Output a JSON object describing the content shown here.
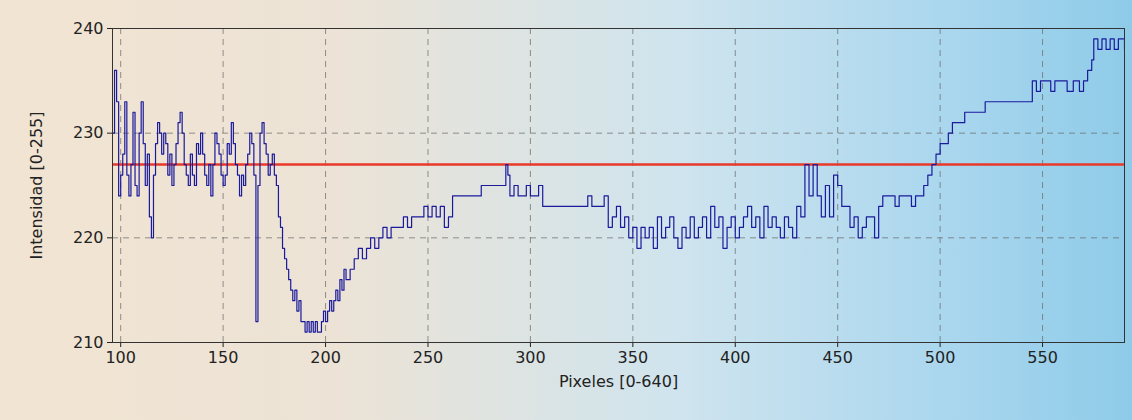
{
  "chart_data": {
    "type": "line",
    "x_label": "Pixeles [0-640]",
    "y_label": "Intensidad [0-255]",
    "xlim": [
      96,
      590
    ],
    "xticks": [
      100,
      150,
      200,
      250,
      300,
      350,
      400,
      450,
      500,
      550
    ],
    "ylim": [
      210,
      240
    ],
    "yticks": [
      210,
      220,
      230,
      240
    ],
    "grid": true,
    "line_style": "steps",
    "x": [
      96,
      97,
      98,
      99,
      100,
      101,
      102,
      103,
      104,
      105,
      106,
      107,
      108,
      109,
      110,
      111,
      112,
      113,
      114,
      115,
      116,
      117,
      118,
      119,
      120,
      121,
      122,
      123,
      124,
      125,
      126,
      127,
      128,
      129,
      130,
      131,
      132,
      133,
      134,
      135,
      136,
      137,
      138,
      139,
      140,
      141,
      142,
      143,
      144,
      145,
      146,
      147,
      148,
      149,
      150,
      151,
      152,
      153,
      154,
      155,
      156,
      157,
      158,
      159,
      160,
      161,
      162,
      163,
      164,
      165,
      166,
      167,
      168,
      169,
      170,
      171,
      172,
      173,
      174,
      175,
      176,
      177,
      178,
      179,
      180,
      181,
      182,
      183,
      184,
      185,
      186,
      187,
      188,
      189,
      190,
      191,
      192,
      193,
      194,
      195,
      196,
      197,
      198,
      199,
      200,
      201,
      202,
      203,
      204,
      205,
      206,
      207,
      208,
      209,
      210,
      212,
      214,
      216,
      218,
      220,
      222,
      224,
      226,
      228,
      230,
      232,
      235,
      238,
      240,
      242,
      245,
      248,
      250,
      252,
      254,
      256,
      258,
      260,
      262,
      276,
      288,
      289,
      290,
      292,
      294,
      296,
      298,
      300,
      302,
      304,
      306,
      328,
      330,
      336,
      338,
      340,
      342,
      344,
      346,
      348,
      350,
      352,
      354,
      356,
      358,
      360,
      362,
      364,
      366,
      368,
      370,
      372,
      374,
      376,
      378,
      380,
      382,
      384,
      386,
      388,
      390,
      392,
      394,
      396,
      398,
      400,
      402,
      404,
      406,
      408,
      410,
      412,
      414,
      416,
      418,
      420,
      422,
      424,
      426,
      428,
      430,
      432,
      434,
      436,
      438,
      440,
      442,
      444,
      446,
      448,
      450,
      452,
      456,
      458,
      460,
      462,
      464,
      468,
      470,
      472,
      478,
      480,
      486,
      488,
      492,
      494,
      496,
      498,
      500,
      504,
      506,
      512,
      522,
      545,
      547,
      549,
      554,
      556,
      562,
      565,
      568,
      570,
      572,
      574,
      575,
      577,
      579,
      581,
      583,
      585,
      587,
      590
    ],
    "series": [
      {
        "color": "#1a1a9c",
        "values": [
          230,
          236,
          233,
          224,
          226,
          228,
          233,
          226,
          224,
          227,
          232,
          225,
          224,
          230,
          233,
          229,
          225,
          228,
          222,
          220,
          226,
          229,
          231,
          230,
          228,
          230,
          229,
          226,
          228,
          225,
          227,
          229,
          231,
          232,
          230,
          227,
          226,
          225,
          228,
          226,
          225,
          229,
          228,
          230,
          228,
          226,
          225,
          227,
          224,
          227,
          230,
          229,
          228,
          226,
          225,
          226,
          229,
          228,
          231,
          229,
          227,
          226,
          224,
          226,
          225,
          227,
          228,
          230,
          229,
          226,
          212,
          225,
          230,
          231,
          229,
          228,
          226,
          227,
          228,
          226,
          225,
          222,
          221,
          219,
          218,
          217,
          216,
          215,
          214,
          215,
          213,
          214,
          212,
          212,
          211,
          212,
          211,
          212,
          211,
          212,
          211,
          211,
          212,
          213,
          212,
          213,
          214,
          213,
          214,
          215,
          214,
          216,
          215,
          217,
          216,
          217,
          218,
          219,
          218,
          219,
          220,
          219,
          220,
          221,
          220,
          221,
          221,
          222,
          221,
          222,
          222,
          223,
          222,
          223,
          222,
          223,
          221,
          222,
          224,
          225,
          227,
          226,
          224,
          225,
          224,
          224,
          225,
          224,
          224,
          225,
          223,
          224,
          223,
          224,
          221,
          222,
          223,
          221,
          222,
          220,
          221,
          219,
          221,
          220,
          221,
          219,
          222,
          220,
          221,
          222,
          220,
          219,
          221,
          220,
          222,
          220,
          221,
          222,
          220,
          223,
          221,
          222,
          219,
          221,
          222,
          220,
          221,
          222,
          223,
          221,
          222,
          220,
          223,
          221,
          222,
          221,
          220,
          222,
          221,
          220,
          223,
          222,
          227,
          224,
          227,
          224,
          222,
          225,
          222,
          226,
          225,
          223,
          221,
          222,
          220,
          221,
          222,
          220,
          223,
          224,
          223,
          224,
          223,
          224,
          225,
          226,
          227,
          228,
          229,
          230,
          231,
          232,
          233,
          235,
          234,
          235,
          234,
          235,
          234,
          235,
          234,
          235,
          236,
          237,
          239,
          238,
          239,
          238,
          239,
          238,
          239,
          238
        ]
      }
    ],
    "hline": {
      "value": 227,
      "color": "#e8392a"
    }
  }
}
